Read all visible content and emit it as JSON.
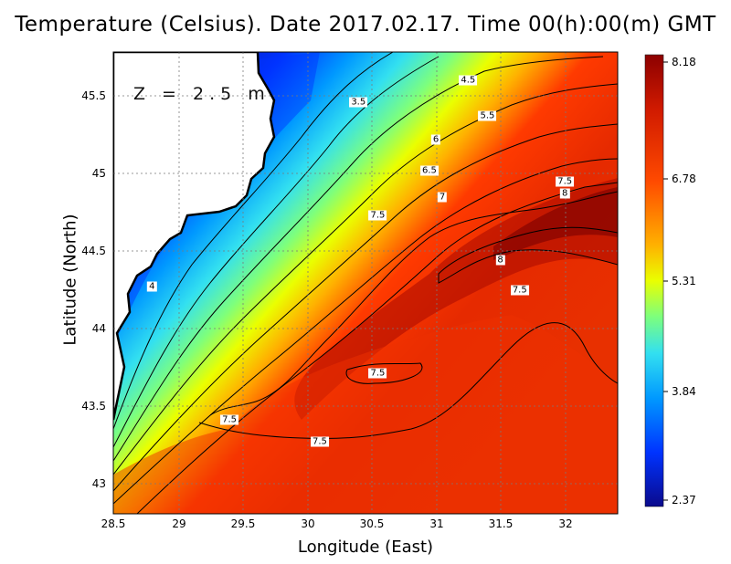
{
  "title": "Temperature (Celsius). Date 2017.02.17. Time 00(h):00(m)  GMT",
  "depth_label": "Z = 2.5 m",
  "x_axis": {
    "label": "Longitude (East)",
    "ticks": [
      "28.5",
      "29",
      "29.5",
      "30",
      "30.5",
      "31",
      "31.5",
      "32"
    ]
  },
  "y_axis": {
    "label": "Latitude (North)",
    "ticks": [
      "45.5",
      "45",
      "44.5",
      "44",
      "43.5",
      "43"
    ]
  },
  "colorbar": {
    "ticks": [
      "8.18",
      "6.78",
      "5.31",
      "3.84",
      "2.37"
    ],
    "min": 2.37,
    "max": 8.18,
    "colors": [
      "#0a0a8c",
      "#0033ff",
      "#0099ff",
      "#33e0f0",
      "#7dff7d",
      "#eaff00",
      "#ffb000",
      "#ff3a00",
      "#d01a00",
      "#8c0000"
    ]
  },
  "contour_labels": [
    "3.5",
    "4",
    "4.5",
    "5.5",
    "6",
    "6.5",
    "7",
    "7.5",
    "7.5",
    "7.5",
    "7.5",
    "7.5",
    "7.5",
    "8",
    "8"
  ],
  "chart_data": {
    "type": "heatmap",
    "title": "Temperature (Celsius). Date 2017.02.17. Time 00(h):00(m)  GMT",
    "xlabel": "Longitude (East)",
    "ylabel": "Latitude (North)",
    "xlim": [
      28.5,
      32.4
    ],
    "ylim": [
      42.8,
      45.8
    ],
    "value_range": [
      2.37,
      8.18
    ],
    "contour_levels": [
      3.5,
      4,
      4.5,
      5,
      5.5,
      6,
      6.5,
      7,
      7.5,
      8
    ],
    "labeled_contours": [
      {
        "value": 3.5,
        "lon": 30.4,
        "lat": 45.46
      },
      {
        "value": 4.5,
        "lon": 31.25,
        "lat": 45.6
      },
      {
        "value": 5.5,
        "lon": 31.4,
        "lat": 45.37
      },
      {
        "value": 6,
        "lon": 31.0,
        "lat": 45.22
      },
      {
        "value": 6.5,
        "lon": 30.95,
        "lat": 45.02
      },
      {
        "value": 7,
        "lon": 31.05,
        "lat": 44.85
      },
      {
        "value": 7.5,
        "lon": 30.55,
        "lat": 44.73
      },
      {
        "value": 7.5,
        "lon": 32.0,
        "lat": 44.95
      },
      {
        "value": 8,
        "lon": 32.0,
        "lat": 44.87
      },
      {
        "value": 8,
        "lon": 31.5,
        "lat": 44.44
      },
      {
        "value": 7.5,
        "lon": 31.65,
        "lat": 44.25
      },
      {
        "value": 7.5,
        "lon": 30.55,
        "lat": 43.71
      },
      {
        "value": 7.5,
        "lon": 29.4,
        "lat": 43.41
      },
      {
        "value": 7.5,
        "lon": 30.1,
        "lat": 43.27
      },
      {
        "value": 4,
        "lon": 28.8,
        "lat": 44.27
      }
    ]
  }
}
